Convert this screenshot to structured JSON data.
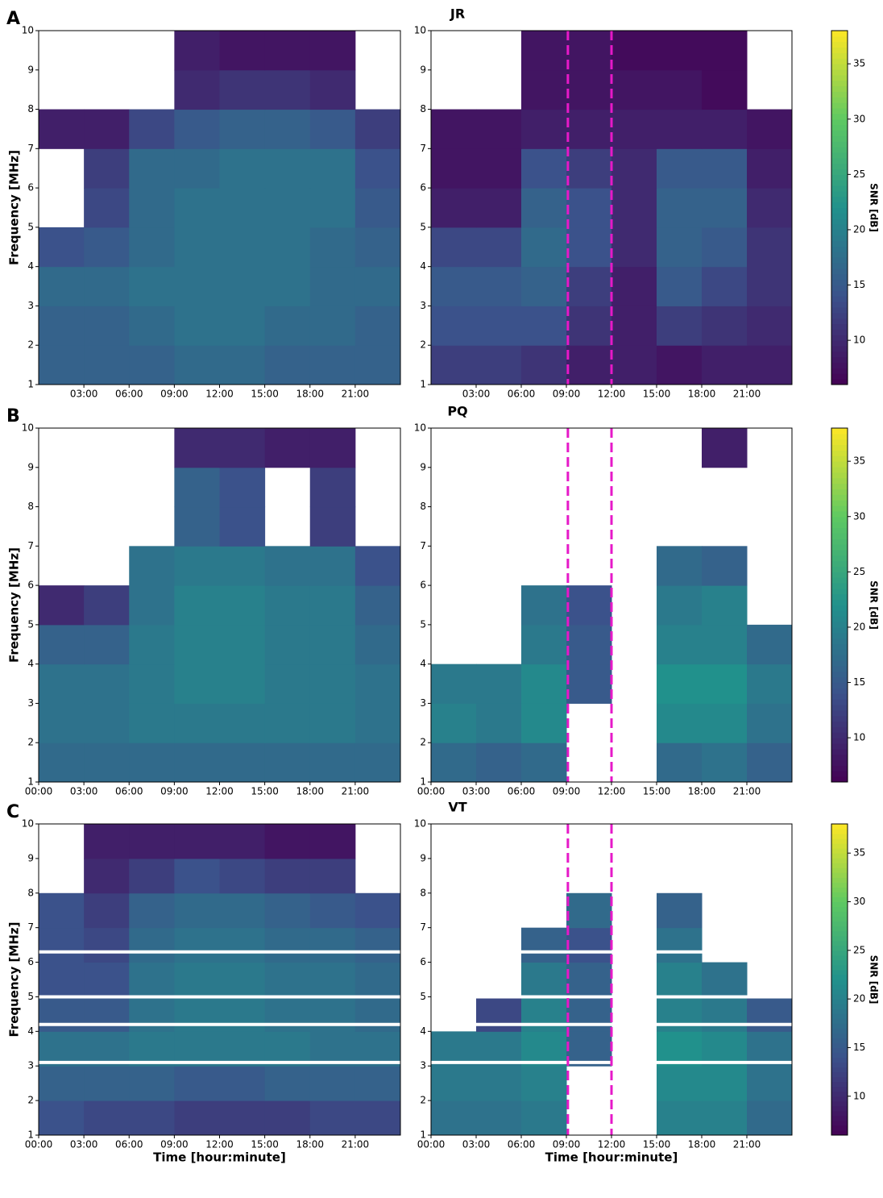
{
  "chart_data": [
    {
      "type": "heatmap",
      "panel_label": "A",
      "ylabel": "Frequency [MHz]",
      "x_bins": [
        0,
        3,
        6,
        9,
        12,
        15,
        18,
        21,
        24
      ],
      "y_bins": [
        1,
        2,
        3,
        4,
        5,
        6,
        7,
        8,
        9,
        10
      ],
      "values": [
        [
          16,
          16,
          16,
          17,
          17,
          16,
          16,
          16
        ],
        [
          16,
          16,
          17,
          18,
          18,
          17,
          17,
          16
        ],
        [
          17,
          17,
          18,
          18,
          18,
          18,
          17,
          17
        ],
        [
          14,
          15,
          17,
          18,
          18,
          18,
          17,
          16
        ],
        [
          null,
          13,
          17,
          18,
          18,
          18,
          18,
          15
        ],
        [
          null,
          12,
          17,
          17,
          18,
          18,
          18,
          14
        ],
        [
          9,
          9,
          13,
          15,
          16,
          16,
          15,
          12
        ],
        [
          null,
          null,
          null,
          10,
          11,
          11,
          10,
          null
        ],
        [
          null,
          null,
          null,
          9,
          8,
          8,
          8,
          null
        ]
      ],
      "xlim": [
        0,
        24
      ],
      "ylim": [
        1,
        10
      ],
      "xticks": [
        {
          "value": 3,
          "label": "03:00"
        },
        {
          "value": 6,
          "label": "06:00"
        },
        {
          "value": 9,
          "label": "09:00"
        },
        {
          "value": 12,
          "label": "12:00"
        },
        {
          "value": 15,
          "label": "15:00"
        },
        {
          "value": 18,
          "label": "18:00"
        },
        {
          "value": 21,
          "label": "21:00"
        }
      ],
      "yticks": [
        1,
        2,
        3,
        4,
        5,
        6,
        7,
        8,
        9,
        10
      ],
      "clim": [
        6,
        38
      ]
    },
    {
      "type": "heatmap",
      "title": "JR",
      "x_bins": [
        0,
        3,
        6,
        9,
        12,
        15,
        18,
        21,
        24
      ],
      "y_bins": [
        1,
        2,
        3,
        4,
        5,
        6,
        7,
        8,
        9,
        10
      ],
      "values": [
        [
          12,
          12,
          11,
          9,
          9,
          8,
          9,
          9
        ],
        [
          14,
          14,
          14,
          11,
          9,
          12,
          11,
          10
        ],
        [
          15,
          15,
          16,
          12,
          9,
          15,
          13,
          11
        ],
        [
          13,
          13,
          17,
          14,
          10,
          16,
          15,
          11
        ],
        [
          9,
          9,
          16,
          14,
          10,
          16,
          16,
          10
        ],
        [
          8,
          8,
          14,
          12,
          10,
          15,
          15,
          9
        ],
        [
          8,
          8,
          9,
          9,
          9,
          9,
          9,
          8
        ],
        [
          null,
          null,
          8,
          8,
          8,
          8,
          7,
          null
        ],
        [
          null,
          null,
          8,
          8,
          7,
          7,
          7,
          null
        ]
      ],
      "xlim": [
        0,
        24
      ],
      "ylim": [
        1,
        10
      ],
      "xticks": [
        {
          "value": 3,
          "label": "03:00"
        },
        {
          "value": 6,
          "label": "06:00"
        },
        {
          "value": 9,
          "label": "09:00"
        },
        {
          "value": 12,
          "label": "12:00"
        },
        {
          "value": 15,
          "label": "15:00"
        },
        {
          "value": 18,
          "label": "18:00"
        },
        {
          "value": 21,
          "label": "21:00"
        }
      ],
      "yticks": [
        1,
        2,
        3,
        4,
        5,
        6,
        7,
        8,
        9,
        10
      ],
      "clim": [
        6,
        38
      ],
      "vlines": [
        9.1,
        12
      ],
      "vline_color": "#e619c8",
      "colorbar": {
        "label": "SNR [dB]",
        "lim": [
          6,
          38
        ],
        "ticks": [
          10,
          15,
          20,
          25,
          30,
          35
        ]
      }
    },
    {
      "type": "heatmap",
      "panel_label": "B",
      "ylabel": "Frequency [MHz]",
      "x_bins": [
        0,
        3,
        6,
        9,
        12,
        15,
        18,
        21,
        24
      ],
      "y_bins": [
        1,
        2,
        3,
        4,
        5,
        6,
        7,
        8,
        9,
        10
      ],
      "values": [
        [
          17,
          17,
          17,
          17,
          17,
          17,
          17,
          17
        ],
        [
          18,
          18,
          19,
          19,
          19,
          19,
          19,
          18
        ],
        [
          18,
          18,
          19,
          20,
          20,
          19,
          19,
          18
        ],
        [
          16,
          16,
          19,
          20,
          20,
          19,
          19,
          17
        ],
        [
          10,
          12,
          18,
          20,
          20,
          19,
          19,
          16
        ],
        [
          null,
          null,
          18,
          19,
          19,
          18,
          18,
          14
        ],
        [
          null,
          null,
          null,
          16,
          14,
          null,
          12,
          null
        ],
        [
          null,
          null,
          null,
          16,
          14,
          null,
          12,
          null
        ],
        [
          null,
          null,
          null,
          10,
          10,
          9,
          9,
          null
        ]
      ],
      "xlim": [
        0,
        24
      ],
      "ylim": [
        1,
        10
      ],
      "xticks": [
        {
          "value": 0,
          "label": "00:00"
        },
        {
          "value": 3,
          "label": "03:00"
        },
        {
          "value": 6,
          "label": "06:00"
        },
        {
          "value": 9,
          "label": "09:00"
        },
        {
          "value": 12,
          "label": "12:00"
        },
        {
          "value": 15,
          "label": "15:00"
        },
        {
          "value": 18,
          "label": "18:00"
        },
        {
          "value": 21,
          "label": "21:00"
        }
      ],
      "yticks": [
        1,
        2,
        3,
        4,
        5,
        6,
        7,
        8,
        9,
        10
      ],
      "clim": [
        6,
        38
      ]
    },
    {
      "type": "heatmap",
      "title": "PQ",
      "x_bins": [
        0,
        3,
        6,
        9,
        12,
        15,
        18,
        21,
        24
      ],
      "y_bins": [
        1,
        2,
        3,
        4,
        5,
        6,
        7,
        8,
        9,
        10
      ],
      "values": [
        [
          17,
          16,
          17,
          null,
          null,
          17,
          18,
          16
        ],
        [
          20,
          19,
          21,
          null,
          null,
          21,
          21,
          18
        ],
        [
          19,
          19,
          21,
          15,
          null,
          22,
          22,
          19
        ],
        [
          null,
          null,
          19,
          15,
          null,
          20,
          20,
          17
        ],
        [
          null,
          null,
          18,
          14,
          null,
          19,
          20,
          null
        ],
        [
          null,
          null,
          null,
          null,
          null,
          17,
          16,
          null
        ],
        [
          null,
          null,
          null,
          null,
          null,
          null,
          null,
          null
        ],
        [
          null,
          null,
          null,
          null,
          null,
          null,
          null,
          null
        ],
        [
          null,
          null,
          null,
          null,
          null,
          null,
          9,
          null
        ]
      ],
      "xlim": [
        0,
        24
      ],
      "ylim": [
        1,
        10
      ],
      "xticks": [
        {
          "value": 0,
          "label": "00:00"
        },
        {
          "value": 3,
          "label": "03:00"
        },
        {
          "value": 6,
          "label": "06:00"
        },
        {
          "value": 9,
          "label": "09:00"
        },
        {
          "value": 12,
          "label": "12:00"
        },
        {
          "value": 15,
          "label": "15:00"
        },
        {
          "value": 18,
          "label": "18:00"
        },
        {
          "value": 21,
          "label": "21:00"
        }
      ],
      "yticks": [
        1,
        2,
        3,
        4,
        5,
        6,
        7,
        8,
        9,
        10
      ],
      "clim": [
        6,
        38
      ],
      "vlines": [
        9.1,
        12
      ],
      "vline_color": "#e619c8",
      "colorbar": {
        "label": "SNR [dB]",
        "lim": [
          6,
          38
        ],
        "ticks": [
          10,
          15,
          20,
          25,
          30,
          35
        ]
      }
    },
    {
      "type": "heatmap",
      "panel_label": "C",
      "ylabel": "Frequency [MHz]",
      "xlabel": "Time [hour:minute]",
      "x_bins": [
        0,
        3,
        6,
        9,
        12,
        15,
        18,
        21,
        24
      ],
      "y_bins": [
        1,
        2,
        3,
        4,
        5,
        6,
        7,
        8,
        9,
        10
      ],
      "values": [
        [
          14,
          13,
          13,
          12,
          12,
          12,
          13,
          13
        ],
        [
          16,
          16,
          16,
          15,
          15,
          16,
          16,
          16
        ],
        [
          18,
          18,
          19,
          19,
          19,
          19,
          18,
          18
        ],
        [
          15,
          15,
          18,
          19,
          19,
          18,
          18,
          17
        ],
        [
          14,
          14,
          18,
          19,
          19,
          18,
          18,
          17
        ],
        [
          14,
          13,
          17,
          18,
          18,
          17,
          17,
          16
        ],
        [
          14,
          12,
          16,
          17,
          17,
          16,
          15,
          14
        ],
        [
          null,
          10,
          12,
          14,
          13,
          12,
          12,
          null
        ],
        [
          null,
          9,
          9,
          9,
          9,
          8,
          8,
          null
        ]
      ],
      "xlim": [
        0,
        24
      ],
      "ylim": [
        1,
        10
      ],
      "xticks": [
        {
          "value": 0,
          "label": "00:00"
        },
        {
          "value": 3,
          "label": "03:00"
        },
        {
          "value": 6,
          "label": "06:00"
        },
        {
          "value": 9,
          "label": "09:00"
        },
        {
          "value": 12,
          "label": "12:00"
        },
        {
          "value": 15,
          "label": "15:00"
        },
        {
          "value": 18,
          "label": "18:00"
        },
        {
          "value": 21,
          "label": "21:00"
        }
      ],
      "yticks": [
        1,
        2,
        3,
        4,
        5,
        6,
        7,
        8,
        9,
        10
      ],
      "clim": [
        6,
        38
      ],
      "gaps": [
        3.1,
        4.2,
        5.0,
        6.3
      ]
    },
    {
      "type": "heatmap",
      "title": "VT",
      "xlabel": "Time [hour:minute]",
      "x_bins": [
        0,
        3,
        6,
        9,
        12,
        15,
        18,
        21,
        24
      ],
      "y_bins": [
        1,
        2,
        3,
        4,
        5,
        6,
        7,
        8,
        9,
        10
      ],
      "values": [
        [
          18,
          18,
          19,
          null,
          null,
          20,
          20,
          17
        ],
        [
          19,
          19,
          20,
          null,
          null,
          21,
          21,
          18
        ],
        [
          19,
          19,
          21,
          16,
          null,
          22,
          21,
          18
        ],
        [
          null,
          13,
          20,
          16,
          null,
          20,
          19,
          15
        ],
        [
          null,
          null,
          19,
          16,
          null,
          20,
          18,
          null
        ],
        [
          null,
          null,
          16,
          14,
          null,
          18,
          null,
          null
        ],
        [
          null,
          null,
          null,
          17,
          null,
          16,
          null,
          null
        ],
        [
          null,
          null,
          null,
          null,
          null,
          null,
          null,
          null
        ],
        [
          null,
          null,
          null,
          null,
          null,
          null,
          null,
          null
        ]
      ],
      "xlim": [
        0,
        24
      ],
      "ylim": [
        1,
        10
      ],
      "xticks": [
        {
          "value": 0,
          "label": "00:00"
        },
        {
          "value": 3,
          "label": "03:00"
        },
        {
          "value": 6,
          "label": "06:00"
        },
        {
          "value": 9,
          "label": "09:00"
        },
        {
          "value": 12,
          "label": "12:00"
        },
        {
          "value": 15,
          "label": "15:00"
        },
        {
          "value": 18,
          "label": "18:00"
        },
        {
          "value": 21,
          "label": "21:00"
        }
      ],
      "yticks": [
        1,
        2,
        3,
        4,
        5,
        6,
        7,
        8,
        9,
        10
      ],
      "clim": [
        6,
        38
      ],
      "gaps": [
        3.1,
        4.2,
        5.0,
        6.3
      ],
      "vlines": [
        9.1,
        12
      ],
      "vline_color": "#e619c8",
      "colorbar": {
        "label": "SNR [dB]",
        "lim": [
          6,
          38
        ],
        "ticks": [
          10,
          15,
          20,
          25,
          30,
          35
        ]
      }
    }
  ]
}
